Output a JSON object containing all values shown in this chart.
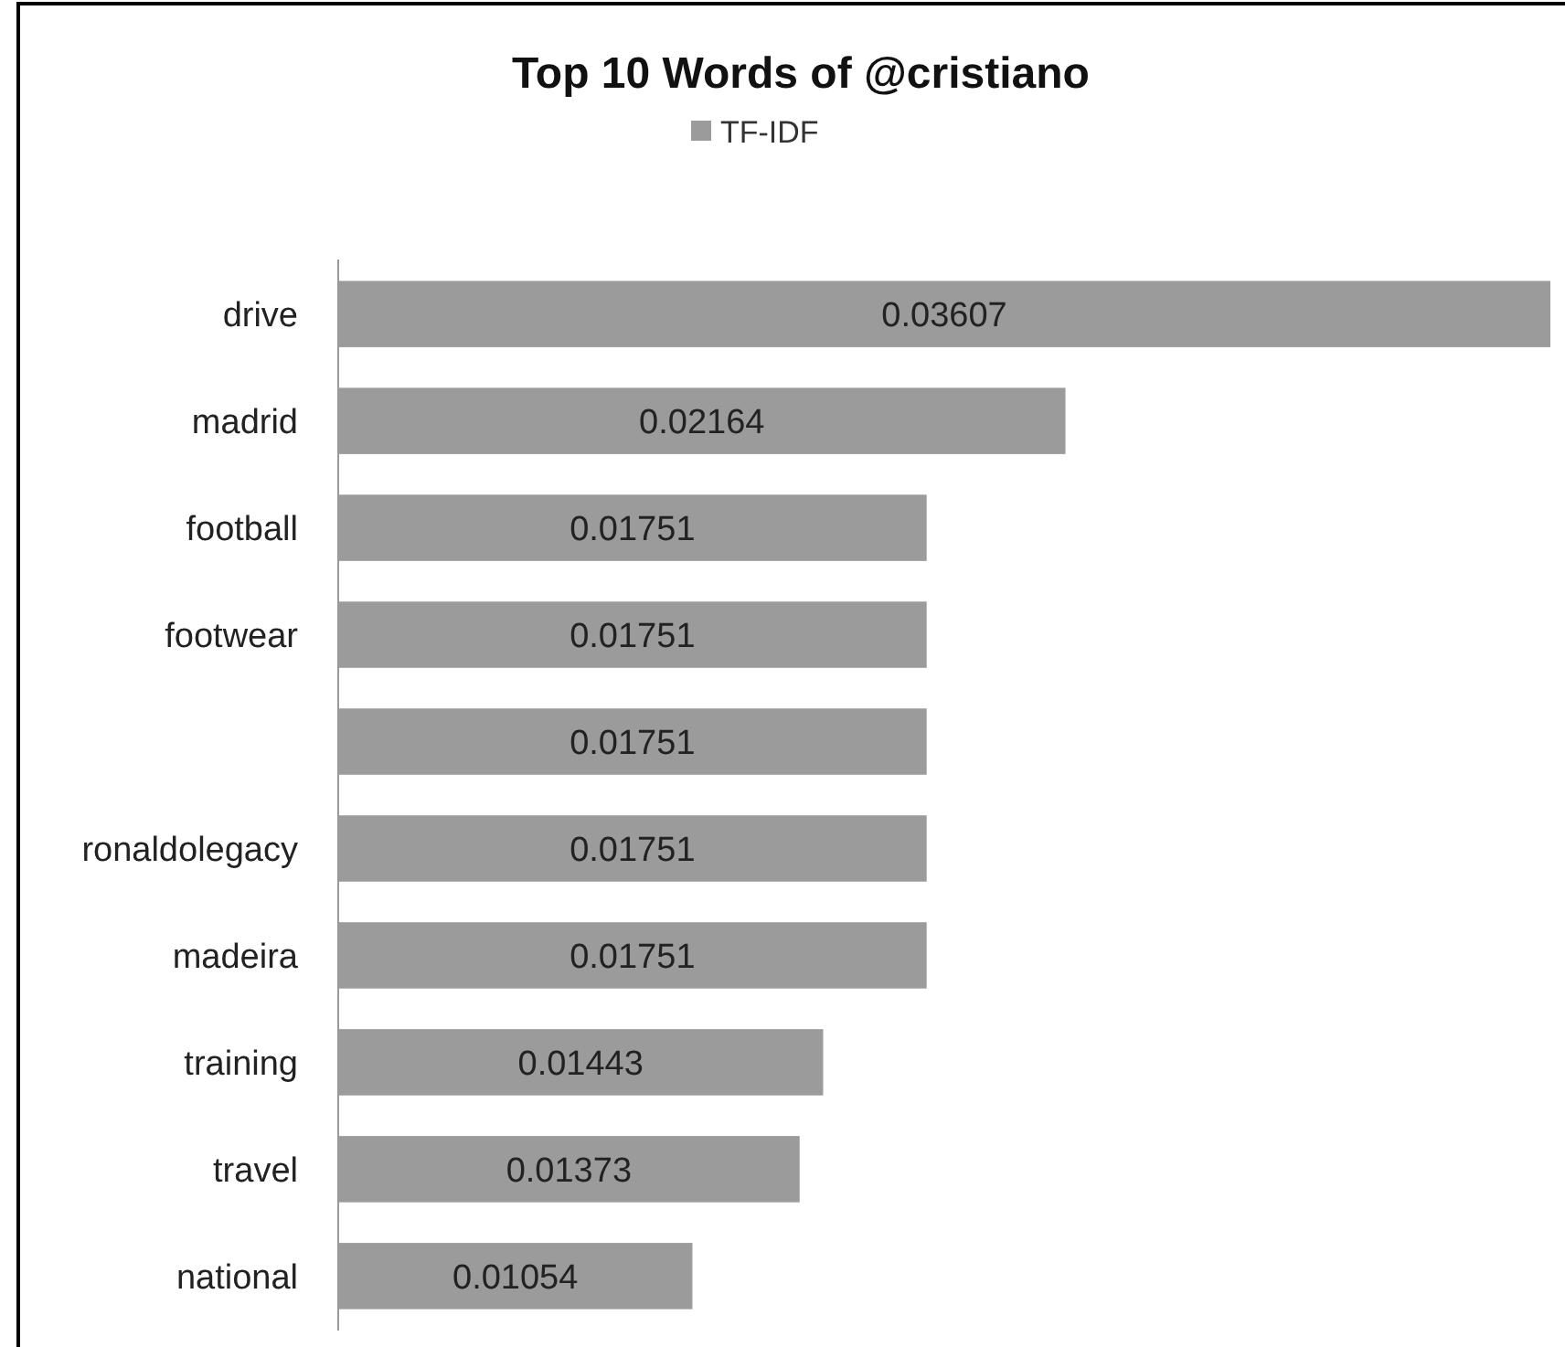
{
  "chart_data": {
    "type": "bar",
    "orientation": "horizontal",
    "title": "Top 10 Words of @cristiano",
    "categories": [
      "drive",
      "madrid",
      "football",
      "footwear",
      null,
      "ronaldolegacy",
      "madeira",
      "training",
      "travel",
      "national"
    ],
    "series": [
      {
        "name": "TF-IDF",
        "color": "#9b9b9b",
        "values": [
          0.03607,
          0.02164,
          0.01751,
          0.01751,
          0.01751,
          0.01751,
          0.01751,
          0.01443,
          0.01373,
          0.01054
        ]
      }
    ],
    "data_labels": true,
    "legend": "top"
  }
}
